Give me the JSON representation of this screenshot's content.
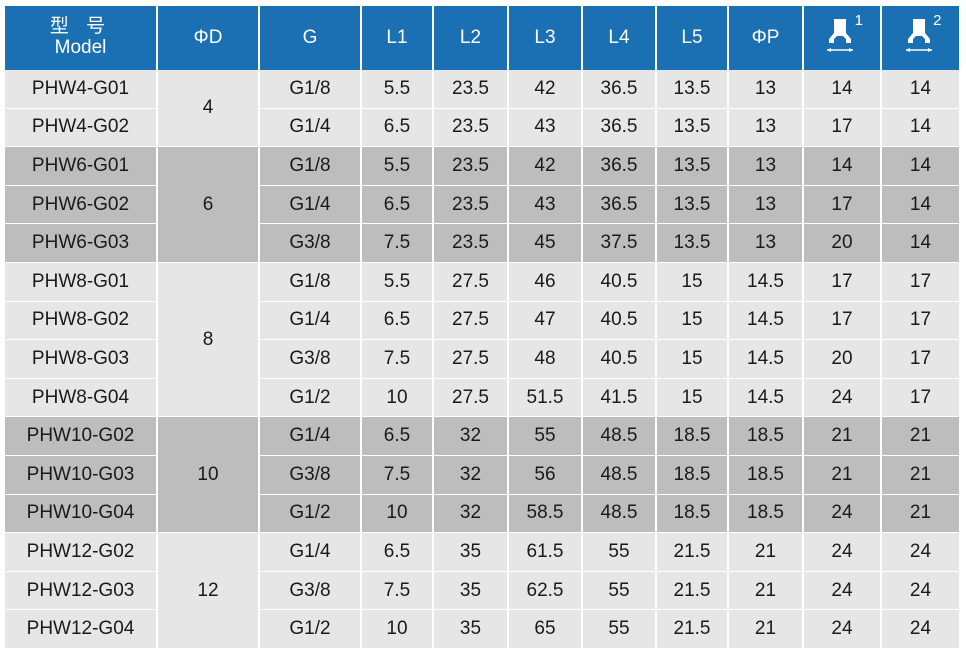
{
  "headers": {
    "model_cn": "型 号",
    "model_en": "Model",
    "od": "ΦD",
    "g": "G",
    "l1": "L1",
    "l2": "L2",
    "l3": "L3",
    "l4": "L4",
    "l5": "L5",
    "op": "ΦP",
    "wrench1_num": "1",
    "wrench2_num": "2",
    "wrench1_icon": "wrench-size-1-icon",
    "wrench2_icon": "wrench-size-2-icon"
  },
  "groups": [
    {
      "d": "4",
      "shade": "light",
      "rows": [
        [
          "PHW4-G01",
          "G1/8",
          "5.5",
          "23.5",
          "42",
          "36.5",
          "13.5",
          "13",
          "14",
          "14"
        ],
        [
          "PHW4-G02",
          "G1/4",
          "6.5",
          "23.5",
          "43",
          "36.5",
          "13.5",
          "13",
          "17",
          "14"
        ]
      ]
    },
    {
      "d": "6",
      "shade": "dark",
      "rows": [
        [
          "PHW6-G01",
          "G1/8",
          "5.5",
          "23.5",
          "42",
          "36.5",
          "13.5",
          "13",
          "14",
          "14"
        ],
        [
          "PHW6-G02",
          "G1/4",
          "6.5",
          "23.5",
          "43",
          "36.5",
          "13.5",
          "13",
          "17",
          "14"
        ],
        [
          "PHW6-G03",
          "G3/8",
          "7.5",
          "23.5",
          "45",
          "37.5",
          "13.5",
          "13",
          "20",
          "14"
        ]
      ]
    },
    {
      "d": "8",
      "shade": "light",
      "rows": [
        [
          "PHW8-G01",
          "G1/8",
          "5.5",
          "27.5",
          "46",
          "40.5",
          "15",
          "14.5",
          "17",
          "17"
        ],
        [
          "PHW8-G02",
          "G1/4",
          "6.5",
          "27.5",
          "47",
          "40.5",
          "15",
          "14.5",
          "17",
          "17"
        ],
        [
          "PHW8-G03",
          "G3/8",
          "7.5",
          "27.5",
          "48",
          "40.5",
          "15",
          "14.5",
          "20",
          "17"
        ],
        [
          "PHW8-G04",
          "G1/2",
          "10",
          "27.5",
          "51.5",
          "41.5",
          "15",
          "14.5",
          "24",
          "17"
        ]
      ]
    },
    {
      "d": "10",
      "shade": "dark",
      "rows": [
        [
          "PHW10-G02",
          "G1/4",
          "6.5",
          "32",
          "55",
          "48.5",
          "18.5",
          "18.5",
          "21",
          "21"
        ],
        [
          "PHW10-G03",
          "G3/8",
          "7.5",
          "32",
          "56",
          "48.5",
          "18.5",
          "18.5",
          "21",
          "21"
        ],
        [
          "PHW10-G04",
          "G1/2",
          "10",
          "32",
          "58.5",
          "48.5",
          "18.5",
          "18.5",
          "24",
          "21"
        ]
      ]
    },
    {
      "d": "12",
      "shade": "light",
      "rows": [
        [
          "PHW12-G02",
          "G1/4",
          "6.5",
          "35",
          "61.5",
          "55",
          "21.5",
          "21",
          "24",
          "24"
        ],
        [
          "PHW12-G03",
          "G3/8",
          "7.5",
          "35",
          "62.5",
          "55",
          "21.5",
          "21",
          "24",
          "24"
        ],
        [
          "PHW12-G04",
          "G1/2",
          "10",
          "35",
          "65",
          "55",
          "21.5",
          "21",
          "24",
          "24"
        ]
      ]
    }
  ]
}
